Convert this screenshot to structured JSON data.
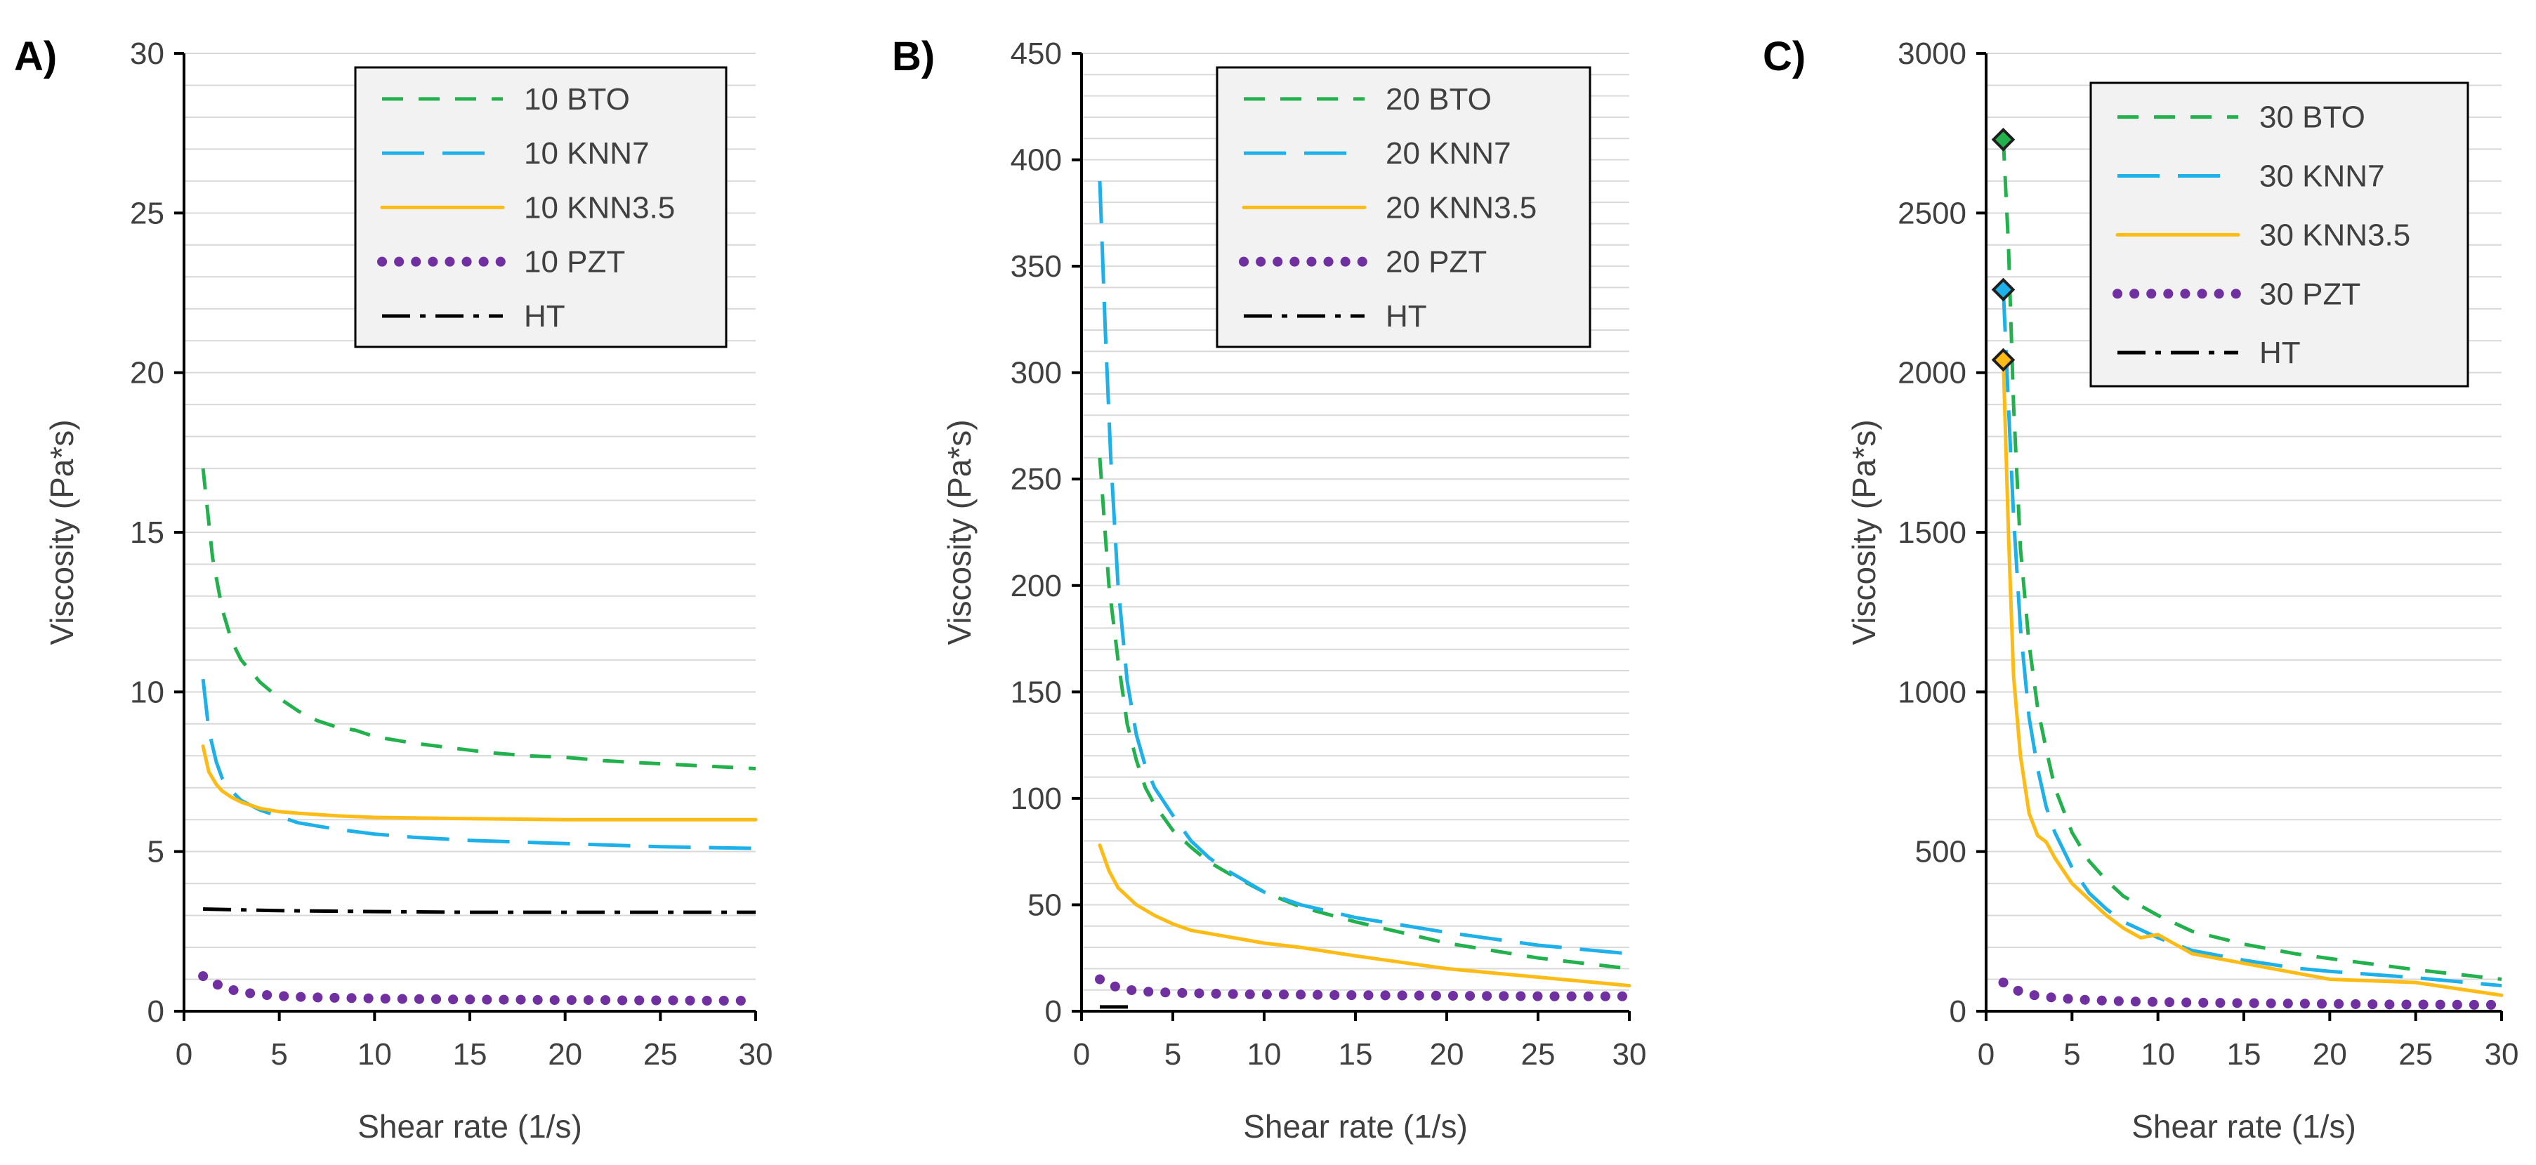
{
  "chart_data": [
    {
      "type": "line",
      "panel_label": "A)",
      "xlabel": "Shear rate (1/s)",
      "ylabel": "Viscosity (Pa*s)",
      "xlim": [
        0,
        30
      ],
      "ylim": [
        0,
        30
      ],
      "xticks": [
        0,
        5,
        10,
        15,
        20,
        25,
        30
      ],
      "yticks": [
        0,
        5,
        10,
        15,
        20,
        25,
        30
      ],
      "xtick_labels": [
        "0",
        "5",
        "10",
        "15",
        "20",
        "25",
        "30"
      ],
      "ytick_labels": [
        "0",
        "5",
        "10",
        "15",
        "20",
        "25",
        "30"
      ],
      "minor_grid_step": 1,
      "legend": "top-right",
      "series": [
        {
          "name": "10BTO",
          "legend_label": "10 BTO",
          "color": "#22b14c",
          "dash": "dash",
          "x": [
            1,
            1.5,
            2,
            2.5,
            3,
            4,
            5,
            6,
            7,
            8,
            9,
            10,
            12,
            14,
            16,
            18,
            20,
            22,
            24,
            26,
            28,
            30
          ],
          "y": [
            17.0,
            14.2,
            12.6,
            11.6,
            11.0,
            10.3,
            9.8,
            9.4,
            9.1,
            8.9,
            8.8,
            8.6,
            8.4,
            8.25,
            8.1,
            8.0,
            7.95,
            7.85,
            7.78,
            7.72,
            7.66,
            7.6
          ]
        },
        {
          "name": "10KNN7",
          "legend_label": "10 KNN7",
          "color": "#1eb0e8",
          "dash": "longdash",
          "x": [
            1,
            1.3,
            1.7,
            2,
            2.5,
            3,
            4,
            5,
            6,
            8,
            10,
            12,
            15,
            20,
            25,
            30
          ],
          "y": [
            10.4,
            8.8,
            7.8,
            7.3,
            6.9,
            6.6,
            6.3,
            6.1,
            5.9,
            5.7,
            5.55,
            5.45,
            5.35,
            5.25,
            5.15,
            5.1
          ]
        },
        {
          "name": "10KNN3.5",
          "legend_label": "10 KNN3.5",
          "color": "#fdbb16",
          "dash": "solid",
          "x": [
            1,
            1.3,
            1.7,
            2,
            2.5,
            3,
            4,
            5,
            6,
            8,
            10,
            15,
            20,
            25,
            30
          ],
          "y": [
            8.3,
            7.5,
            7.1,
            6.9,
            6.7,
            6.55,
            6.35,
            6.25,
            6.2,
            6.12,
            6.07,
            6.03,
            6.0,
            6.0,
            6.0
          ]
        },
        {
          "name": "10PZT",
          "legend_label": "10 PZT",
          "color": "#7030a0",
          "dash": "dot",
          "x": [
            1,
            2,
            3,
            4,
            5,
            6,
            7,
            8,
            9,
            10,
            11,
            12,
            13,
            14,
            15,
            16,
            17,
            18,
            19,
            20,
            21,
            22,
            23,
            24,
            25,
            26,
            27,
            28,
            29,
            30
          ],
          "y": [
            1.1,
            0.75,
            0.6,
            0.52,
            0.48,
            0.45,
            0.43,
            0.42,
            0.41,
            0.4,
            0.39,
            0.38,
            0.38,
            0.37,
            0.37,
            0.36,
            0.36,
            0.36,
            0.35,
            0.35,
            0.35,
            0.35,
            0.34,
            0.34,
            0.34,
            0.34,
            0.33,
            0.33,
            0.33,
            0.33
          ]
        },
        {
          "name": "HT",
          "legend_label": "HT",
          "color": "#000000",
          "dash": "dashdot",
          "x": [
            1,
            5,
            10,
            15,
            20,
            25,
            30
          ],
          "y": [
            3.2,
            3.15,
            3.12,
            3.1,
            3.1,
            3.1,
            3.1
          ]
        }
      ]
    },
    {
      "type": "line",
      "panel_label": "B)",
      "xlabel": "Shear rate (1/s)",
      "ylabel": "Viscosity (Pa*s)",
      "xlim": [
        0,
        30
      ],
      "ylim": [
        0,
        450
      ],
      "xticks": [
        0,
        5,
        10,
        15,
        20,
        25,
        30
      ],
      "yticks": [
        0,
        50,
        100,
        150,
        200,
        250,
        300,
        350,
        400,
        450
      ],
      "xtick_labels": [
        "0",
        "5",
        "10",
        "15",
        "20",
        "25",
        "30"
      ],
      "ytick_labels": [
        "0",
        "50",
        "100",
        "150",
        "200",
        "250",
        "300",
        "350",
        "400",
        "450"
      ],
      "minor_grid_step": 10,
      "legend": "top-right",
      "series": [
        {
          "name": "20BTO",
          "legend_label": "20 BTO",
          "color": "#22b14c",
          "dash": "dash",
          "x": [
            1,
            1.5,
            2,
            2.5,
            3,
            3.5,
            4,
            5,
            6,
            7,
            8,
            10,
            12,
            15,
            18,
            20,
            25,
            30
          ],
          "y": [
            260,
            200,
            165,
            135,
            118,
            105,
            97,
            85,
            77,
            70,
            65,
            56,
            49,
            42,
            36,
            32,
            25,
            20
          ]
        },
        {
          "name": "20KNN7",
          "legend_label": "20 KNN7",
          "color": "#1eb0e8",
          "dash": "longdash",
          "x": [
            1,
            1.3,
            1.6,
            2,
            2.5,
            3,
            3.5,
            4,
            5,
            6,
            7,
            8,
            10,
            12,
            15,
            20,
            25,
            30
          ],
          "y": [
            390,
            320,
            260,
            200,
            155,
            130,
            115,
            105,
            92,
            80,
            72,
            66,
            56,
            50,
            44,
            37,
            31,
            27
          ]
        },
        {
          "name": "20KNN3.5",
          "legend_label": "20 KNN3.5",
          "color": "#fdbb16",
          "dash": "solid",
          "x": [
            1,
            1.5,
            2,
            3,
            4,
            5,
            6,
            8,
            10,
            12,
            15,
            20,
            25,
            30
          ],
          "y": [
            78,
            66,
            58,
            50,
            45,
            41,
            38,
            35,
            32,
            30,
            26,
            20,
            16,
            12
          ]
        },
        {
          "name": "20PZT",
          "legend_label": "20 PZT",
          "color": "#7030a0",
          "dash": "dot",
          "x": [
            1,
            2,
            3,
            4,
            5,
            6,
            7,
            8,
            9,
            10,
            12,
            14,
            16,
            18,
            20,
            22,
            24,
            26,
            28,
            30
          ],
          "y": [
            15,
            11,
            9.5,
            9,
            8.7,
            8.5,
            8.3,
            8.1,
            8,
            7.9,
            7.8,
            7.6,
            7.5,
            7.4,
            7.3,
            7.2,
            7.1,
            7,
            7,
            7
          ]
        },
        {
          "name": "HT",
          "legend_label": "HT",
          "color": "#000000",
          "dash": "dashdot",
          "x": [
            1,
            3
          ],
          "y": [
            2,
            2
          ]
        }
      ]
    },
    {
      "type": "line",
      "panel_label": "C)",
      "xlabel": "Shear rate (1/s)",
      "ylabel": "Viscosity (Pa*s)",
      "xlim": [
        0,
        30
      ],
      "ylim": [
        0,
        3000
      ],
      "xticks": [
        0,
        5,
        10,
        15,
        20,
        25,
        30
      ],
      "yticks": [
        0,
        500,
        1000,
        1500,
        2000,
        2500,
        3000
      ],
      "xtick_labels": [
        "0",
        "5",
        "10",
        "15",
        "20",
        "25",
        "30"
      ],
      "ytick_labels": [
        "0",
        "500",
        "1000",
        "1500",
        "2000",
        "2500",
        "3000"
      ],
      "minor_grid_step": 100,
      "legend": "top-right",
      "series": [
        {
          "name": "30BTO",
          "legend_label": "30 BTO",
          "color": "#22b14c",
          "dash": "dash",
          "x": [
            1,
            1.3,
            1.6,
            2,
            2.5,
            3,
            3.5,
            4,
            5,
            6,
            7,
            8,
            10,
            12,
            15,
            18,
            20,
            25,
            30
          ],
          "y": [
            2730,
            2400,
            1900,
            1450,
            1150,
            950,
            820,
            700,
            560,
            470,
            410,
            360,
            300,
            250,
            210,
            180,
            165,
            130,
            100
          ]
        },
        {
          "name": "30KNN7",
          "legend_label": "30 KNN7",
          "color": "#1eb0e8",
          "dash": "longdash",
          "x": [
            1,
            1.3,
            1.6,
            2,
            2.5,
            3,
            3.5,
            4,
            5,
            6,
            7,
            8,
            10,
            12,
            15,
            18,
            20,
            25,
            30
          ],
          "y": [
            2260,
            1900,
            1550,
            1200,
            920,
            760,
            640,
            560,
            450,
            370,
            320,
            280,
            230,
            190,
            160,
            135,
            125,
            105,
            80
          ]
        },
        {
          "name": "30KNN3.5",
          "legend_label": "30 KNN3.5",
          "color": "#fdbb16",
          "dash": "solid",
          "x": [
            1,
            1.3,
            1.6,
            2,
            2.5,
            3,
            3.5,
            4,
            5,
            6,
            7,
            8,
            9,
            10,
            11,
            12,
            15,
            18,
            20,
            25,
            30
          ],
          "y": [
            2040,
            1500,
            1050,
            800,
            620,
            550,
            530,
            480,
            400,
            350,
            300,
            260,
            230,
            240,
            210,
            180,
            150,
            120,
            100,
            90,
            50
          ]
        },
        {
          "name": "30PZT",
          "legend_label": "30 PZT",
          "color": "#7030a0",
          "dash": "dot",
          "x": [
            1,
            2,
            3,
            4,
            5,
            6,
            7,
            8,
            9,
            10,
            12,
            14,
            16,
            18,
            20,
            22,
            24,
            26,
            28,
            30
          ],
          "y": [
            90,
            60,
            48,
            42,
            38,
            35,
            33,
            31,
            30,
            29,
            27,
            26,
            25,
            24,
            23,
            22,
            21,
            21,
            20,
            20
          ]
        },
        {
          "name": "HT",
          "legend_label": "HT",
          "color": "#000000",
          "dash": "dashdot",
          "x": [],
          "y": []
        }
      ],
      "markers": [
        {
          "series": "30BTO",
          "x": 1,
          "y": 2730
        },
        {
          "series": "30KNN7",
          "x": 1,
          "y": 2260
        },
        {
          "series": "30KNN3.5",
          "x": 1,
          "y": 2040
        }
      ]
    }
  ]
}
